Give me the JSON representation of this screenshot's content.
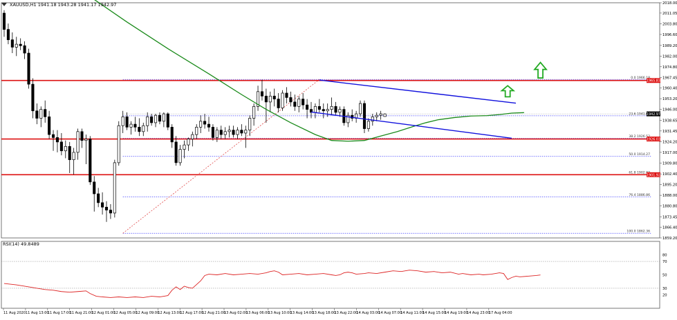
{
  "header": {
    "title": "XAUUSD,H1  1941.18 1943.28 1941.17 1942.97",
    "icon": "triangle-down-icon"
  },
  "rsi_panel": {
    "label": "RSI(14) 49.8489",
    "levels": [
      "80",
      "70",
      "50",
      "30",
      "20"
    ]
  },
  "colors": {
    "background": "#ffffff",
    "bull_candle": "#ffffff",
    "bear_candle": "#000000",
    "moving_average": "#1a8a1a",
    "channel": "#1111dd",
    "horizontal_level": "#dd1111",
    "fibonacci": "#4040ff",
    "trend_line": "#dd3333",
    "rsi_line": "#dd2222",
    "arrow": "#22aa22",
    "price_tag": "#dd1111"
  },
  "chart_data": {
    "type": "candlestick",
    "symbol": "XAUUSD",
    "timeframe": "H1",
    "ohlc": {
      "open": 1941.18,
      "high": 1943.28,
      "low": 1941.17,
      "close": 1942.97
    },
    "ylim": [
      1859.2,
      2018.0
    ],
    "y_ticks": [
      "2018.00",
      "2011.05",
      "2003.80",
      "1996.60",
      "1989.20",
      "1982.00",
      "1974.80",
      "1967.45",
      "1960.40",
      "1953.20",
      "1946.00",
      "1938.65",
      "1931.45",
      "1924.20",
      "1917.00",
      "1909.80",
      "1902.40",
      "1895.20",
      "1888.00",
      "1880.80",
      "1873.45",
      "1866.40",
      "1859.20"
    ],
    "x_ticks": [
      "11 Aug 2020",
      "11 Aug 13:00",
      "11 Aug 17:00",
      "11 Aug 21:00",
      "12 Aug 01:00",
      "12 Aug 05:00",
      "12 Aug 09:00",
      "12 Aug 13:00",
      "12 Aug 17:00",
      "12 Aug 21:00",
      "13 Aug 02:00",
      "13 Aug 06:00",
      "13 Aug 10:00",
      "13 Aug 14:00",
      "13 Aug 18:00",
      "13 Aug 22:00",
      "14 Aug 03:00",
      "14 Aug 07:00",
      "14 Aug 11:00",
      "14 Aug 15:00",
      "14 Aug 19:00",
      "14 Aug 23:00",
      "17 Aug 04:00"
    ],
    "candles": [
      {
        "o": 2011,
        "h": 2013,
        "l": 1995,
        "c": 2000
      },
      {
        "o": 2000,
        "h": 2004,
        "l": 1990,
        "c": 1993
      },
      {
        "o": 1993,
        "h": 1998,
        "l": 1984,
        "c": 1988
      },
      {
        "o": 1988,
        "h": 1995,
        "l": 1982,
        "c": 1990
      },
      {
        "o": 1990,
        "h": 1994,
        "l": 1986,
        "c": 1989
      },
      {
        "o": 1989,
        "h": 1992,
        "l": 1980,
        "c": 1984
      },
      {
        "o": 1984,
        "h": 1987,
        "l": 1960,
        "c": 1963
      },
      {
        "o": 1963,
        "h": 1967,
        "l": 1940,
        "c": 1945
      },
      {
        "o": 1945,
        "h": 1950,
        "l": 1936,
        "c": 1940
      },
      {
        "o": 1940,
        "h": 1948,
        "l": 1934,
        "c": 1946
      },
      {
        "o": 1946,
        "h": 1952,
        "l": 1937,
        "c": 1941
      },
      {
        "o": 1941,
        "h": 1945,
        "l": 1926,
        "c": 1929
      },
      {
        "o": 1929,
        "h": 1932,
        "l": 1918,
        "c": 1927
      },
      {
        "o": 1927,
        "h": 1932,
        "l": 1917,
        "c": 1924
      },
      {
        "o": 1924,
        "h": 1930,
        "l": 1915,
        "c": 1918
      },
      {
        "o": 1918,
        "h": 1925,
        "l": 1913,
        "c": 1921
      },
      {
        "o": 1921,
        "h": 1924,
        "l": 1903,
        "c": 1912
      },
      {
        "o": 1912,
        "h": 1920,
        "l": 1902,
        "c": 1917
      },
      {
        "o": 1917,
        "h": 1933,
        "l": 1912,
        "c": 1931
      },
      {
        "o": 1931,
        "h": 1933,
        "l": 1920,
        "c": 1925
      },
      {
        "o": 1925,
        "h": 1929,
        "l": 1909,
        "c": 1926
      },
      {
        "o": 1926,
        "h": 1928,
        "l": 1895,
        "c": 1897
      },
      {
        "o": 1897,
        "h": 1901,
        "l": 1877,
        "c": 1889
      },
      {
        "o": 1889,
        "h": 1893,
        "l": 1880,
        "c": 1883
      },
      {
        "o": 1883,
        "h": 1890,
        "l": 1875,
        "c": 1880
      },
      {
        "o": 1880,
        "h": 1884,
        "l": 1870,
        "c": 1878
      },
      {
        "o": 1878,
        "h": 1882,
        "l": 1872,
        "c": 1876
      },
      {
        "o": 1876,
        "h": 1912,
        "l": 1873,
        "c": 1910
      },
      {
        "o": 1910,
        "h": 1938,
        "l": 1908,
        "c": 1935
      },
      {
        "o": 1935,
        "h": 1945,
        "l": 1930,
        "c": 1941
      },
      {
        "o": 1941,
        "h": 1944,
        "l": 1932,
        "c": 1934
      },
      {
        "o": 1934,
        "h": 1938,
        "l": 1929,
        "c": 1936
      },
      {
        "o": 1936,
        "h": 1941,
        "l": 1931,
        "c": 1934
      },
      {
        "o": 1934,
        "h": 1940,
        "l": 1928,
        "c": 1931
      },
      {
        "o": 1931,
        "h": 1937,
        "l": 1928,
        "c": 1935
      },
      {
        "o": 1935,
        "h": 1944,
        "l": 1931,
        "c": 1941
      },
      {
        "o": 1941,
        "h": 1943,
        "l": 1935,
        "c": 1937
      },
      {
        "o": 1937,
        "h": 1943,
        "l": 1934,
        "c": 1942
      },
      {
        "o": 1942,
        "h": 1944,
        "l": 1936,
        "c": 1938
      },
      {
        "o": 1938,
        "h": 1944,
        "l": 1934,
        "c": 1943
      },
      {
        "o": 1943,
        "h": 1944,
        "l": 1932,
        "c": 1934
      },
      {
        "o": 1934,
        "h": 1936,
        "l": 1920,
        "c": 1924
      },
      {
        "o": 1924,
        "h": 1928,
        "l": 1908,
        "c": 1910
      },
      {
        "o": 1910,
        "h": 1922,
        "l": 1908,
        "c": 1919
      },
      {
        "o": 1919,
        "h": 1925,
        "l": 1913,
        "c": 1922
      },
      {
        "o": 1922,
        "h": 1927,
        "l": 1918,
        "c": 1926
      },
      {
        "o": 1926,
        "h": 1931,
        "l": 1921,
        "c": 1929
      },
      {
        "o": 1929,
        "h": 1936,
        "l": 1926,
        "c": 1934
      },
      {
        "o": 1934,
        "h": 1942,
        "l": 1930,
        "c": 1938
      },
      {
        "o": 1938,
        "h": 1943,
        "l": 1933,
        "c": 1936
      },
      {
        "o": 1936,
        "h": 1941,
        "l": 1931,
        "c": 1934
      },
      {
        "o": 1934,
        "h": 1936,
        "l": 1925,
        "c": 1927
      },
      {
        "o": 1927,
        "h": 1934,
        "l": 1924,
        "c": 1932
      },
      {
        "o": 1932,
        "h": 1935,
        "l": 1926,
        "c": 1929
      },
      {
        "o": 1929,
        "h": 1934,
        "l": 1926,
        "c": 1931
      },
      {
        "o": 1931,
        "h": 1935,
        "l": 1927,
        "c": 1932
      },
      {
        "o": 1932,
        "h": 1935,
        "l": 1927,
        "c": 1929
      },
      {
        "o": 1929,
        "h": 1934,
        "l": 1926,
        "c": 1932
      },
      {
        "o": 1932,
        "h": 1936,
        "l": 1928,
        "c": 1930
      },
      {
        "o": 1930,
        "h": 1935,
        "l": 1920,
        "c": 1932
      },
      {
        "o": 1932,
        "h": 1942,
        "l": 1928,
        "c": 1940
      },
      {
        "o": 1940,
        "h": 1950,
        "l": 1935,
        "c": 1948
      },
      {
        "o": 1948,
        "h": 1962,
        "l": 1945,
        "c": 1958
      },
      {
        "o": 1958,
        "h": 1966,
        "l": 1952,
        "c": 1955
      },
      {
        "o": 1955,
        "h": 1960,
        "l": 1937,
        "c": 1951
      },
      {
        "o": 1951,
        "h": 1958,
        "l": 1944,
        "c": 1955
      },
      {
        "o": 1955,
        "h": 1960,
        "l": 1948,
        "c": 1953
      },
      {
        "o": 1953,
        "h": 1957,
        "l": 1944,
        "c": 1947
      },
      {
        "o": 1947,
        "h": 1959,
        "l": 1945,
        "c": 1957
      },
      {
        "o": 1957,
        "h": 1961,
        "l": 1950,
        "c": 1954
      },
      {
        "o": 1954,
        "h": 1958,
        "l": 1948,
        "c": 1951
      },
      {
        "o": 1951,
        "h": 1956,
        "l": 1945,
        "c": 1948
      },
      {
        "o": 1948,
        "h": 1955,
        "l": 1944,
        "c": 1953
      },
      {
        "o": 1953,
        "h": 1957,
        "l": 1946,
        "c": 1949
      },
      {
        "o": 1949,
        "h": 1953,
        "l": 1940,
        "c": 1946
      },
      {
        "o": 1946,
        "h": 1951,
        "l": 1940,
        "c": 1944
      },
      {
        "o": 1944,
        "h": 1950,
        "l": 1940,
        "c": 1948
      },
      {
        "o": 1948,
        "h": 1953,
        "l": 1944,
        "c": 1946
      },
      {
        "o": 1946,
        "h": 1950,
        "l": 1940,
        "c": 1945
      },
      {
        "o": 1945,
        "h": 1950,
        "l": 1941,
        "c": 1946
      },
      {
        "o": 1946,
        "h": 1954,
        "l": 1942,
        "c": 1948
      },
      {
        "o": 1948,
        "h": 1951,
        "l": 1942,
        "c": 1944
      },
      {
        "o": 1944,
        "h": 1948,
        "l": 1941,
        "c": 1946
      },
      {
        "o": 1946,
        "h": 1948,
        "l": 1935,
        "c": 1937
      },
      {
        "o": 1937,
        "h": 1944,
        "l": 1934,
        "c": 1942
      },
      {
        "o": 1942,
        "h": 1946,
        "l": 1938,
        "c": 1940
      },
      {
        "o": 1940,
        "h": 1945,
        "l": 1937,
        "c": 1943
      },
      {
        "o": 1943,
        "h": 1952,
        "l": 1941,
        "c": 1950
      },
      {
        "o": 1950,
        "h": 1952,
        "l": 1930,
        "c": 1933
      },
      {
        "o": 1933,
        "h": 1940,
        "l": 1931,
        "c": 1938
      },
      {
        "o": 1938,
        "h": 1943,
        "l": 1935,
        "c": 1941
      },
      {
        "o": 1941,
        "h": 1944,
        "l": 1938,
        "c": 1942
      },
      {
        "o": 1942,
        "h": 1945,
        "l": 1939,
        "c": 1943
      },
      {
        "o": 1941.18,
        "h": 1943.28,
        "l": 1941.17,
        "c": 1942.97
      }
    ],
    "moving_average": [
      {
        "i": 0,
        "v": 2064
      },
      {
        "i": 10,
        "v": 2043
      },
      {
        "i": 20,
        "v": 2024
      },
      {
        "i": 30,
        "v": 2005
      },
      {
        "i": 40,
        "v": 1987
      },
      {
        "i": 50,
        "v": 1970
      },
      {
        "i": 58,
        "v": 1956
      },
      {
        "i": 64,
        "v": 1946
      },
      {
        "i": 70,
        "v": 1937
      },
      {
        "i": 76,
        "v": 1929
      },
      {
        "i": 80,
        "v": 1925
      },
      {
        "i": 84,
        "v": 1924.5
      },
      {
        "i": 88,
        "v": 1925
      },
      {
        "i": 92,
        "v": 1928
      },
      {
        "i": 96,
        "v": 1931
      },
      {
        "i": 100,
        "v": 1934.5
      },
      {
        "i": 103,
        "v": 1937
      },
      {
        "i": 106,
        "v": 1939
      },
      {
        "i": 110,
        "v": 1940.5
      },
      {
        "i": 114,
        "v": 1941.5
      },
      {
        "i": 118,
        "v": 1941.8
      },
      {
        "i": 121,
        "v": 1942.5
      },
      {
        "i": 124,
        "v": 1943.5
      },
      {
        "i": 127,
        "v": 1943.8
      }
    ],
    "horizontal_levels": [
      {
        "price": 1965.5,
        "tag": "1965.83"
      },
      {
        "price": 1926.0,
        "tag": "1926.03"
      },
      {
        "price": 1901.9,
        "tag": "1901.92"
      }
    ],
    "fibonacci": {
      "from": {
        "i": 29,
        "price": 1862.36
      },
      "to": {
        "i": 77,
        "price": 1966.18
      },
      "levels": [
        {
          "label": "0.0  1966.18",
          "price": 1966.18
        },
        {
          "label": "23.6  1941.68",
          "price": 1941.68
        },
        {
          "label": "38.2  1926.52",
          "price": 1926.52
        },
        {
          "label": "50.0  1914.27",
          "price": 1914.27
        },
        {
          "label": "61.8  1902.02",
          "price": 1902.02
        },
        {
          "label": "76.4  1886.86",
          "price": 1886.86
        },
        {
          "label": "100.0  1862.36",
          "price": 1862.36
        }
      ]
    },
    "channel": [
      {
        "from": {
          "i": 77,
          "price": 1965.8
        },
        "to": {
          "i": 125,
          "price": 1950.2
        }
      },
      {
        "from": {
          "i": 75,
          "price": 1944.2
        },
        "to": {
          "i": 124,
          "price": 1926.5
        }
      }
    ],
    "current_price": {
      "price": 1942.97,
      "tag": "1942.97"
    },
    "arrows": [
      {
        "i": 123,
        "price": 1954.5,
        "height": 7.5
      },
      {
        "i": 131,
        "price": 1967.2,
        "height": 10.5
      }
    ],
    "rsi": {
      "value": 49.8489,
      "ylim": [
        0,
        100
      ],
      "points": [
        [
          0,
          37
        ],
        [
          6,
          35
        ],
        [
          12,
          32
        ],
        [
          16,
          30
        ],
        [
          20,
          28
        ],
        [
          24,
          27
        ],
        [
          28,
          25
        ],
        [
          32,
          24
        ],
        [
          36,
          25
        ],
        [
          40,
          26
        ],
        [
          42,
          22
        ],
        [
          45,
          18
        ],
        [
          48,
          17
        ],
        [
          52,
          16
        ],
        [
          56,
          17
        ],
        [
          60,
          16
        ],
        [
          64,
          17
        ],
        [
          68,
          16
        ],
        [
          72,
          18
        ],
        [
          76,
          17
        ],
        [
          80,
          19
        ],
        [
          82,
          27
        ],
        [
          84,
          32
        ],
        [
          86,
          28
        ],
        [
          88,
          33
        ],
        [
          90,
          31
        ],
        [
          92,
          30
        ],
        [
          96,
          41
        ],
        [
          98,
          49
        ],
        [
          100,
          51
        ],
        [
          104,
          50
        ],
        [
          108,
          52
        ],
        [
          112,
          50
        ],
        [
          116,
          51
        ],
        [
          120,
          52
        ],
        [
          124,
          51
        ],
        [
          128,
          53
        ],
        [
          130,
          55
        ],
        [
          132,
          56
        ],
        [
          134,
          54
        ],
        [
          136,
          50
        ],
        [
          140,
          51
        ],
        [
          144,
          52
        ],
        [
          148,
          50
        ],
        [
          152,
          51
        ],
        [
          156,
          52
        ],
        [
          160,
          50
        ],
        [
          162,
          49
        ],
        [
          164,
          50
        ],
        [
          166,
          53
        ],
        [
          168,
          54
        ],
        [
          170,
          53
        ],
        [
          172,
          51
        ],
        [
          176,
          52
        ],
        [
          178,
          53
        ],
        [
          182,
          52
        ],
        [
          186,
          54
        ],
        [
          190,
          56
        ],
        [
          194,
          55
        ],
        [
          198,
          57
        ],
        [
          202,
          56
        ],
        [
          206,
          54
        ],
        [
          210,
          55
        ],
        [
          214,
          53
        ],
        [
          218,
          54
        ],
        [
          222,
          51
        ],
        [
          224,
          52
        ],
        [
          228,
          50
        ],
        [
          232,
          51
        ],
        [
          234,
          50
        ],
        [
          238,
          51
        ],
        [
          242,
          53
        ],
        [
          244,
          52
        ],
        [
          246,
          43
        ],
        [
          248,
          46
        ],
        [
          250,
          48
        ],
        [
          252,
          47
        ],
        [
          256,
          48
        ],
        [
          260,
          49
        ],
        [
          262,
          49.85
        ]
      ]
    }
  }
}
